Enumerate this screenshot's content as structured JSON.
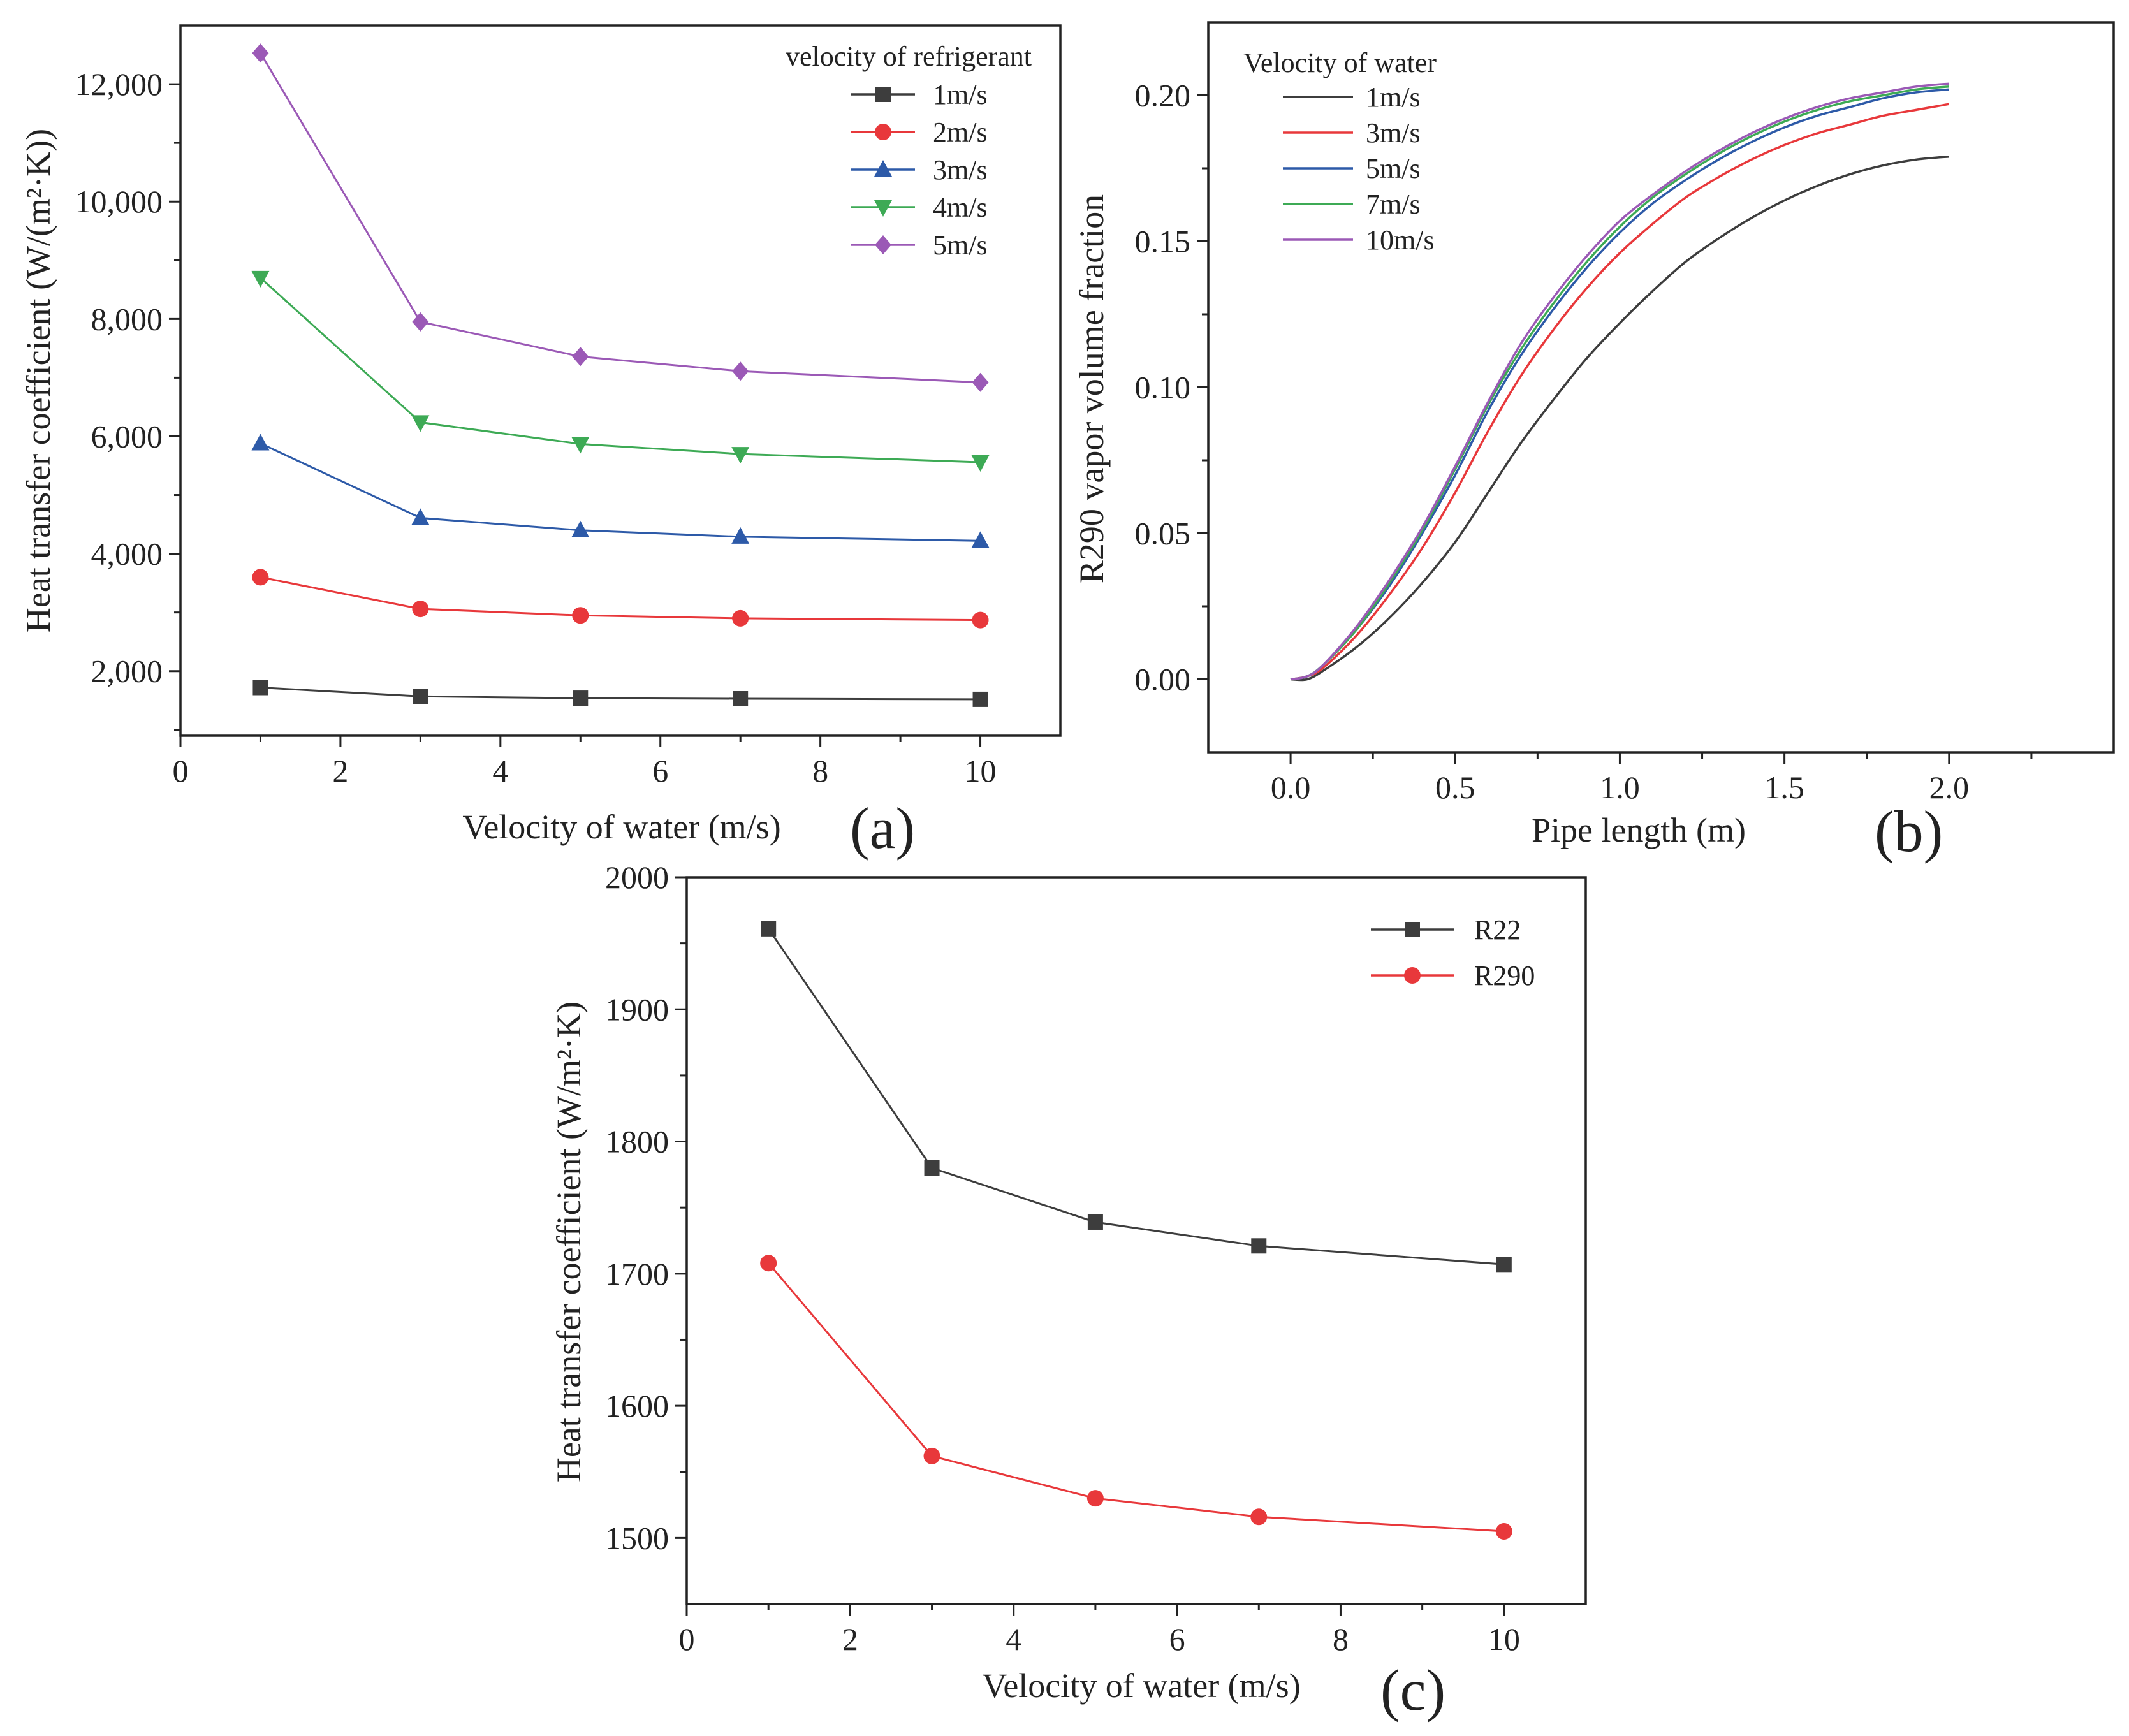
{
  "chart_data": [
    {
      "id": "a",
      "type": "line",
      "panel_label": "(a)",
      "title": "",
      "xlabel": "Velocity of water (m/s)",
      "ylabel": "Heat transfer coefficient (W/(m²·K))",
      "xlim": [
        0,
        11
      ],
      "ylim": [
        900,
        13000
      ],
      "xticks": [
        0,
        2,
        4,
        6,
        8,
        10
      ],
      "xtick_labels": [
        "0",
        "2",
        "4",
        "6",
        "8",
        "10"
      ],
      "yticks": [
        2000,
        4000,
        6000,
        8000,
        10000,
        12000
      ],
      "ytick_labels": [
        "2,000",
        "4,000",
        "6,000",
        "8,000",
        "10,000",
        "12,000"
      ],
      "legend_title": "velocity of refrigerant",
      "legend_position": "top-right",
      "x": [
        1,
        3,
        5,
        7,
        10
      ],
      "series": [
        {
          "name": "1m/s",
          "color": "#3d3d3d",
          "marker": "square",
          "values": [
            1720,
            1570,
            1540,
            1530,
            1520
          ]
        },
        {
          "name": "2m/s",
          "color": "#e8383b",
          "marker": "circle",
          "values": [
            3600,
            3060,
            2950,
            2900,
            2870
          ]
        },
        {
          "name": "3m/s",
          "color": "#2d5aa8",
          "marker": "triangle-up",
          "values": [
            5880,
            4610,
            4400,
            4290,
            4220
          ]
        },
        {
          "name": "4m/s",
          "color": "#3daa55",
          "marker": "triangle-down",
          "values": [
            8700,
            6240,
            5870,
            5700,
            5560
          ]
        },
        {
          "name": "5m/s",
          "color": "#9b59b6",
          "marker": "diamond",
          "values": [
            12530,
            7950,
            7360,
            7110,
            6920
          ]
        }
      ]
    },
    {
      "id": "b",
      "type": "line",
      "panel_label": "(b)",
      "title": "",
      "xlabel": "Pipe length (m)",
      "ylabel": "R290 vapor volume fraction",
      "xlim": [
        -0.25,
        2.5
      ],
      "ylim": [
        -0.025,
        0.225
      ],
      "xticks": [
        0.0,
        0.5,
        1.0,
        1.5,
        2.0
      ],
      "xtick_labels": [
        "0.0",
        "0.5",
        "1.0",
        "1.5",
        "2.0"
      ],
      "yticks": [
        0.0,
        0.05,
        0.1,
        0.15,
        0.2
      ],
      "ytick_labels": [
        "0.00",
        "0.05",
        "0.10",
        "0.15",
        "0.20"
      ],
      "legend_title": "Velocity of water",
      "legend_position": "top-left",
      "x": [
        0.0,
        0.05,
        0.1,
        0.2,
        0.3,
        0.4,
        0.5,
        0.6,
        0.7,
        0.8,
        0.9,
        1.0,
        1.1,
        1.2,
        1.3,
        1.4,
        1.5,
        1.6,
        1.7,
        1.8,
        1.9,
        2.0
      ],
      "series": [
        {
          "name": "1m/s",
          "color": "#3d3d3d",
          "values": [
            0.0,
            0.0,
            0.003,
            0.011,
            0.021,
            0.033,
            0.047,
            0.064,
            0.081,
            0.096,
            0.11,
            0.122,
            0.133,
            0.143,
            0.151,
            0.158,
            0.164,
            0.169,
            0.173,
            0.176,
            0.178,
            0.179
          ]
        },
        {
          "name": "3m/s",
          "color": "#e8383b",
          "values": [
            0.0,
            0.001,
            0.004,
            0.015,
            0.029,
            0.045,
            0.064,
            0.085,
            0.104,
            0.12,
            0.134,
            0.146,
            0.156,
            0.165,
            0.172,
            0.178,
            0.183,
            0.187,
            0.19,
            0.193,
            0.195,
            0.197
          ]
        },
        {
          "name": "5m/s",
          "color": "#2d5aa8",
          "values": [
            0.0,
            0.001,
            0.005,
            0.017,
            0.032,
            0.05,
            0.07,
            0.092,
            0.111,
            0.127,
            0.141,
            0.153,
            0.163,
            0.171,
            0.178,
            0.184,
            0.189,
            0.193,
            0.196,
            0.199,
            0.201,
            0.202
          ]
        },
        {
          "name": "7m/s",
          "color": "#3daa55",
          "values": [
            0.0,
            0.001,
            0.005,
            0.017,
            0.033,
            0.051,
            0.072,
            0.094,
            0.113,
            0.129,
            0.143,
            0.155,
            0.165,
            0.173,
            0.18,
            0.186,
            0.191,
            0.195,
            0.198,
            0.2,
            0.202,
            0.203
          ]
        },
        {
          "name": "10m/s",
          "color": "#9b59b6",
          "values": [
            0.0,
            0.001,
            0.005,
            0.018,
            0.034,
            0.052,
            0.073,
            0.095,
            0.115,
            0.131,
            0.145,
            0.157,
            0.166,
            0.174,
            0.181,
            0.187,
            0.192,
            0.196,
            0.199,
            0.201,
            0.203,
            0.204
          ]
        }
      ]
    },
    {
      "id": "c",
      "type": "line",
      "panel_label": "(c)",
      "title": "",
      "xlabel": "Velocity of water (m/s)",
      "ylabel": "Heat transfer coefficient (W/m²·K)",
      "xlim": [
        0,
        11
      ],
      "ylim": [
        1450,
        2000
      ],
      "xticks": [
        0,
        2,
        4,
        6,
        8,
        10
      ],
      "xtick_labels": [
        "0",
        "2",
        "4",
        "6",
        "8",
        "10"
      ],
      "yticks": [
        1500,
        1600,
        1700,
        1800,
        1900,
        2000
      ],
      "ytick_labels": [
        "1500",
        "1600",
        "1700",
        "1800",
        "1900",
        "2000"
      ],
      "legend_title": "",
      "legend_position": "top-right",
      "x": [
        1,
        3,
        5,
        7,
        10
      ],
      "series": [
        {
          "name": "R22",
          "color": "#3d3d3d",
          "marker": "square",
          "values": [
            1961,
            1780,
            1739,
            1721,
            1707
          ]
        },
        {
          "name": "R290",
          "color": "#e8383b",
          "marker": "circle",
          "values": [
            1708,
            1562,
            1530,
            1516,
            1505
          ]
        }
      ]
    }
  ]
}
